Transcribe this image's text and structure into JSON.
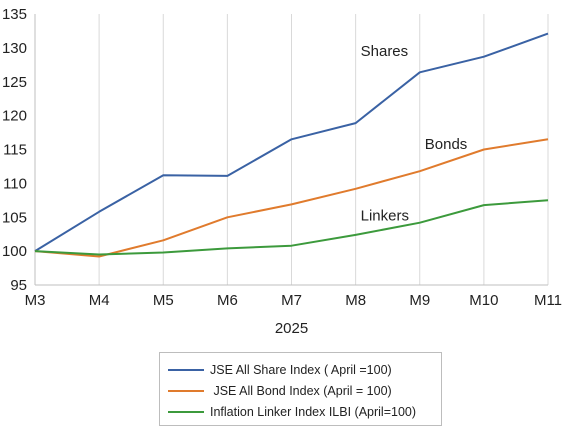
{
  "chart_data": {
    "type": "line",
    "xlabel": "2025",
    "categories": [
      "M3",
      "M4",
      "M5",
      "M6",
      "M7",
      "M8",
      "M9",
      "M10",
      "M11"
    ],
    "ylim": [
      95,
      135
    ],
    "yticks": [
      95,
      100,
      105,
      110,
      115,
      120,
      125,
      130,
      135
    ],
    "grid": "vertical",
    "legend_position": "bottom",
    "series": [
      {
        "name": "JSE All Share Index ( April =100)",
        "color": "#3a62a4",
        "values": [
          100.0,
          105.8,
          111.2,
          111.1,
          116.5,
          118.9,
          126.4,
          128.7,
          132.1
        ]
      },
      {
        "name": " JSE All Bond Index (April = 100)",
        "color": "#e07b2d",
        "values": [
          100.0,
          99.2,
          101.6,
          105.0,
          106.9,
          109.2,
          111.8,
          115.0,
          116.5
        ]
      },
      {
        "name": "Inflation Linker Index ILBI (April=100)",
        "color": "#3c9a3c",
        "values": [
          100.0,
          99.5,
          99.8,
          100.4,
          100.8,
          102.4,
          104.2,
          106.8,
          107.5
        ]
      }
    ],
    "annotations": [
      {
        "text": "Shares",
        "x": "M8",
        "y": 128.8
      },
      {
        "text": "Bonds",
        "x": "M9",
        "y": 115.1
      },
      {
        "text": "Linkers",
        "x": "M8",
        "y": 104.5
      }
    ]
  }
}
